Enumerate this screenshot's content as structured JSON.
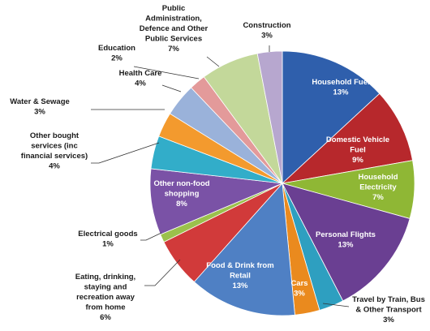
{
  "chart_data": {
    "type": "pie",
    "title": "",
    "start_angle_deg": 0,
    "direction": "clockwise",
    "legend": "none",
    "slices": [
      {
        "name": [
          "Household Fuel"
        ],
        "value_label": "13%",
        "value": 13,
        "color": "#2f5fac",
        "label_mode": "inside",
        "label_color": "#ffffff"
      },
      {
        "name": [
          "Domestic Vehicle",
          "Fuel"
        ],
        "value_label": "9%",
        "value": 9,
        "color": "#b7282c",
        "label_mode": "inside",
        "label_color": "#ffffff"
      },
      {
        "name": [
          "Household",
          "Electricity"
        ],
        "value_label": "7%",
        "value": 7,
        "color": "#8fb735",
        "label_mode": "inside",
        "label_color": "#ffffff"
      },
      {
        "name": [
          "Personal Flights"
        ],
        "value_label": "13%",
        "value": 13,
        "color": "#6a3f92",
        "label_mode": "inside",
        "label_color": "#ffffff"
      },
      {
        "name": [
          "Travel by Train, Bus",
          "& Other Transport"
        ],
        "value_label": "3%",
        "value": 3,
        "color": "#2e9fc0",
        "label_mode": "outside",
        "label_color": "#1a1a1a"
      },
      {
        "name": [
          "Cars"
        ],
        "value_label": "3%",
        "value": 3,
        "color": "#ea8a1e",
        "label_mode": "inside",
        "label_color": "#ffffff"
      },
      {
        "name": [
          "Food & Drink from",
          "Retail"
        ],
        "value_label": "13%",
        "value": 13,
        "color": "#4f80c4",
        "label_mode": "inside",
        "label_color": "#ffffff"
      },
      {
        "name": [
          "Eating, drinking,",
          "staying and",
          "recreation away",
          "from home"
        ],
        "value_label": "6%",
        "value": 6,
        "color": "#d13a3a",
        "label_mode": "outside",
        "label_color": "#1a1a1a"
      },
      {
        "name": [
          "Electrical goods"
        ],
        "value_label": "1%",
        "value": 1,
        "color": "#9bc14c",
        "label_mode": "outside",
        "label_color": "#1a1a1a"
      },
      {
        "name": [
          "Other non-food",
          "shopping"
        ],
        "value_label": "8%",
        "value": 8,
        "color": "#7a52a6",
        "label_mode": "inside",
        "label_color": "#ffffff"
      },
      {
        "name": [
          "Other bought",
          "services (inc",
          "financial services)"
        ],
        "value_label": "4%",
        "value": 4,
        "color": "#32adc9",
        "label_mode": "outside",
        "label_color": "#1a1a1a"
      },
      {
        "name": [
          "Water & Sewage"
        ],
        "value_label": "3%",
        "value": 3,
        "color": "#f39a2e",
        "label_mode": "outside",
        "label_color": "#1a1a1a"
      },
      {
        "name": [
          "Health Care"
        ],
        "value_label": "4%",
        "value": 4,
        "color": "#9ab2da",
        "label_mode": "outside",
        "label_color": "#1a1a1a"
      },
      {
        "name": [
          "Education"
        ],
        "value_label": "2%",
        "value": 2,
        "color": "#e39a9a",
        "label_mode": "outside",
        "label_color": "#1a1a1a"
      },
      {
        "name": [
          "Public",
          "Administration,",
          "Defence and Other",
          "Public Services"
        ],
        "value_label": "7%",
        "value": 7,
        "color": "#c3d89a",
        "label_mode": "outside",
        "label_color": "#1a1a1a"
      },
      {
        "name": [
          "Construction"
        ],
        "value_label": "3%",
        "value": 3,
        "color": "#b7a7cf",
        "label_mode": "outside",
        "label_color": "#1a1a1a"
      }
    ]
  }
}
